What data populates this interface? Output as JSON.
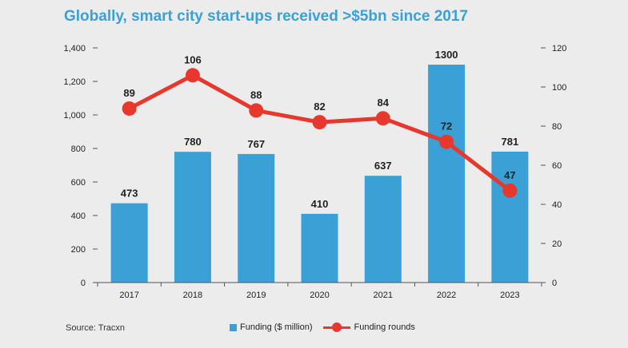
{
  "title": "Globally, smart city start-ups received >$5bn since 2017",
  "source": "Source: Tracxn",
  "legend": {
    "bar_label": "Funding ($ million)",
    "line_label": "Funding rounds"
  },
  "colors": {
    "bar": "#3aa0d6",
    "line": "#e8382d",
    "title": "#3aa0d6",
    "background": "#ececec"
  },
  "chart_data": {
    "type": "bar",
    "title": "Globally, smart city start-ups received >$5bn since 2017",
    "categories": [
      "2017",
      "2018",
      "2019",
      "2020",
      "2021",
      "2022",
      "2023"
    ],
    "series": [
      {
        "name": "Funding ($ million)",
        "type": "bar",
        "axis": "left",
        "values": [
          473,
          780,
          767,
          410,
          637,
          1300,
          781
        ],
        "labels": [
          "473",
          "780",
          "767",
          "410",
          "637",
          "1300",
          "781"
        ]
      },
      {
        "name": "Funding rounds",
        "type": "line",
        "axis": "right",
        "values": [
          89,
          106,
          88,
          82,
          84,
          72,
          47
        ],
        "labels": [
          "89",
          "106",
          "88",
          "82",
          "84",
          "72",
          "47"
        ]
      }
    ],
    "y_left": {
      "lim": [
        0,
        1400
      ],
      "ticks": [
        0,
        200,
        400,
        600,
        800,
        1000,
        1200,
        1400
      ],
      "tick_labels": [
        "0",
        "200",
        "400",
        "600",
        "800",
        "1,000",
        "1,200",
        "1,400"
      ]
    },
    "y_right": {
      "lim": [
        0,
        120
      ],
      "ticks": [
        0,
        20,
        40,
        60,
        80,
        100,
        120
      ],
      "tick_labels": [
        "0",
        "20",
        "40",
        "60",
        "80",
        "100",
        "120"
      ]
    },
    "grid": false,
    "legend_position": "bottom"
  }
}
